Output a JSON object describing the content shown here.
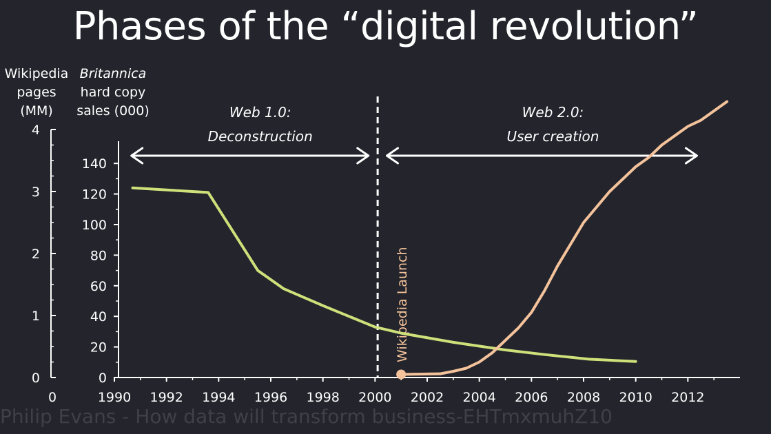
{
  "title": "Phases of the “digital revolution”",
  "video_caption": "Philip Evans - How data will transform business-EHTmxmuhZ10",
  "colors": {
    "background": "#23242c",
    "britannica": "#cfe07a",
    "wikipedia": "#f4c39b",
    "axis": "#ffffff"
  },
  "chart_data": {
    "type": "line",
    "x_ticks": [
      1990,
      1992,
      1994,
      1996,
      1998,
      2000,
      2002,
      2004,
      2006,
      2008,
      2010,
      2012
    ],
    "x_range": [
      1990,
      2014
    ],
    "axes": {
      "left": {
        "label_lines": [
          "Wikipedia",
          "pages",
          "(MM)"
        ],
        "ticks": [
          0,
          1,
          2,
          3,
          4
        ],
        "range": [
          0,
          4
        ]
      },
      "right": {
        "label_lines": [
          "Britannica",
          "hard copy",
          "sales (000)"
        ],
        "ticks": [
          0,
          20,
          40,
          60,
          80,
          100,
          120,
          140
        ],
        "range": [
          0,
          150
        ]
      },
      "bottom_left_label": "0"
    },
    "series": [
      {
        "axis": "right",
        "color": "#cfe07a",
        "points": [
          [
            1990.7,
            124
          ],
          [
            1993.6,
            121
          ],
          [
            1995.5,
            70
          ],
          [
            1996.5,
            58
          ],
          [
            1998,
            47
          ],
          [
            2000,
            33
          ],
          [
            2001,
            29
          ],
          [
            2003,
            23
          ],
          [
            2005,
            18
          ],
          [
            2006.5,
            15
          ],
          [
            2008.2,
            12
          ],
          [
            2010,
            10.5
          ]
        ]
      },
      {
        "axis": "left",
        "color": "#f4c39b",
        "points": [
          [
            2001,
            0.05
          ],
          [
            2002.5,
            0.06
          ],
          [
            2003,
            0.1
          ],
          [
            2003.5,
            0.15
          ],
          [
            2004,
            0.25
          ],
          [
            2004.5,
            0.4
          ],
          [
            2005,
            0.6
          ],
          [
            2005.5,
            0.8
          ],
          [
            2006,
            1.05
          ],
          [
            2006.5,
            1.4
          ],
          [
            2007,
            1.8
          ],
          [
            2007.5,
            2.15
          ],
          [
            2008,
            2.5
          ],
          [
            2008.5,
            2.75
          ],
          [
            2009,
            3.0
          ],
          [
            2009.5,
            3.2
          ],
          [
            2010,
            3.4
          ],
          [
            2010.5,
            3.55
          ],
          [
            2011,
            3.75
          ],
          [
            2011.5,
            3.9
          ],
          [
            2012,
            4.05
          ],
          [
            2012.5,
            4.15
          ],
          [
            2013,
            4.3
          ],
          [
            2013.5,
            4.45
          ]
        ]
      }
    ],
    "annotations": {
      "divider_x": 2000.1,
      "marker": {
        "x": 2001,
        "y": 0.05,
        "label": "Wikipedia Launch"
      },
      "phases": [
        {
          "line1": "Web 1.0:",
          "line2": "Deconstruction",
          "from": 1990.6,
          "to": 1999.8
        },
        {
          "line1": "Web 2.0:",
          "line2": "User creation",
          "from": 2000.4,
          "to": 2012.4
        }
      ]
    }
  }
}
